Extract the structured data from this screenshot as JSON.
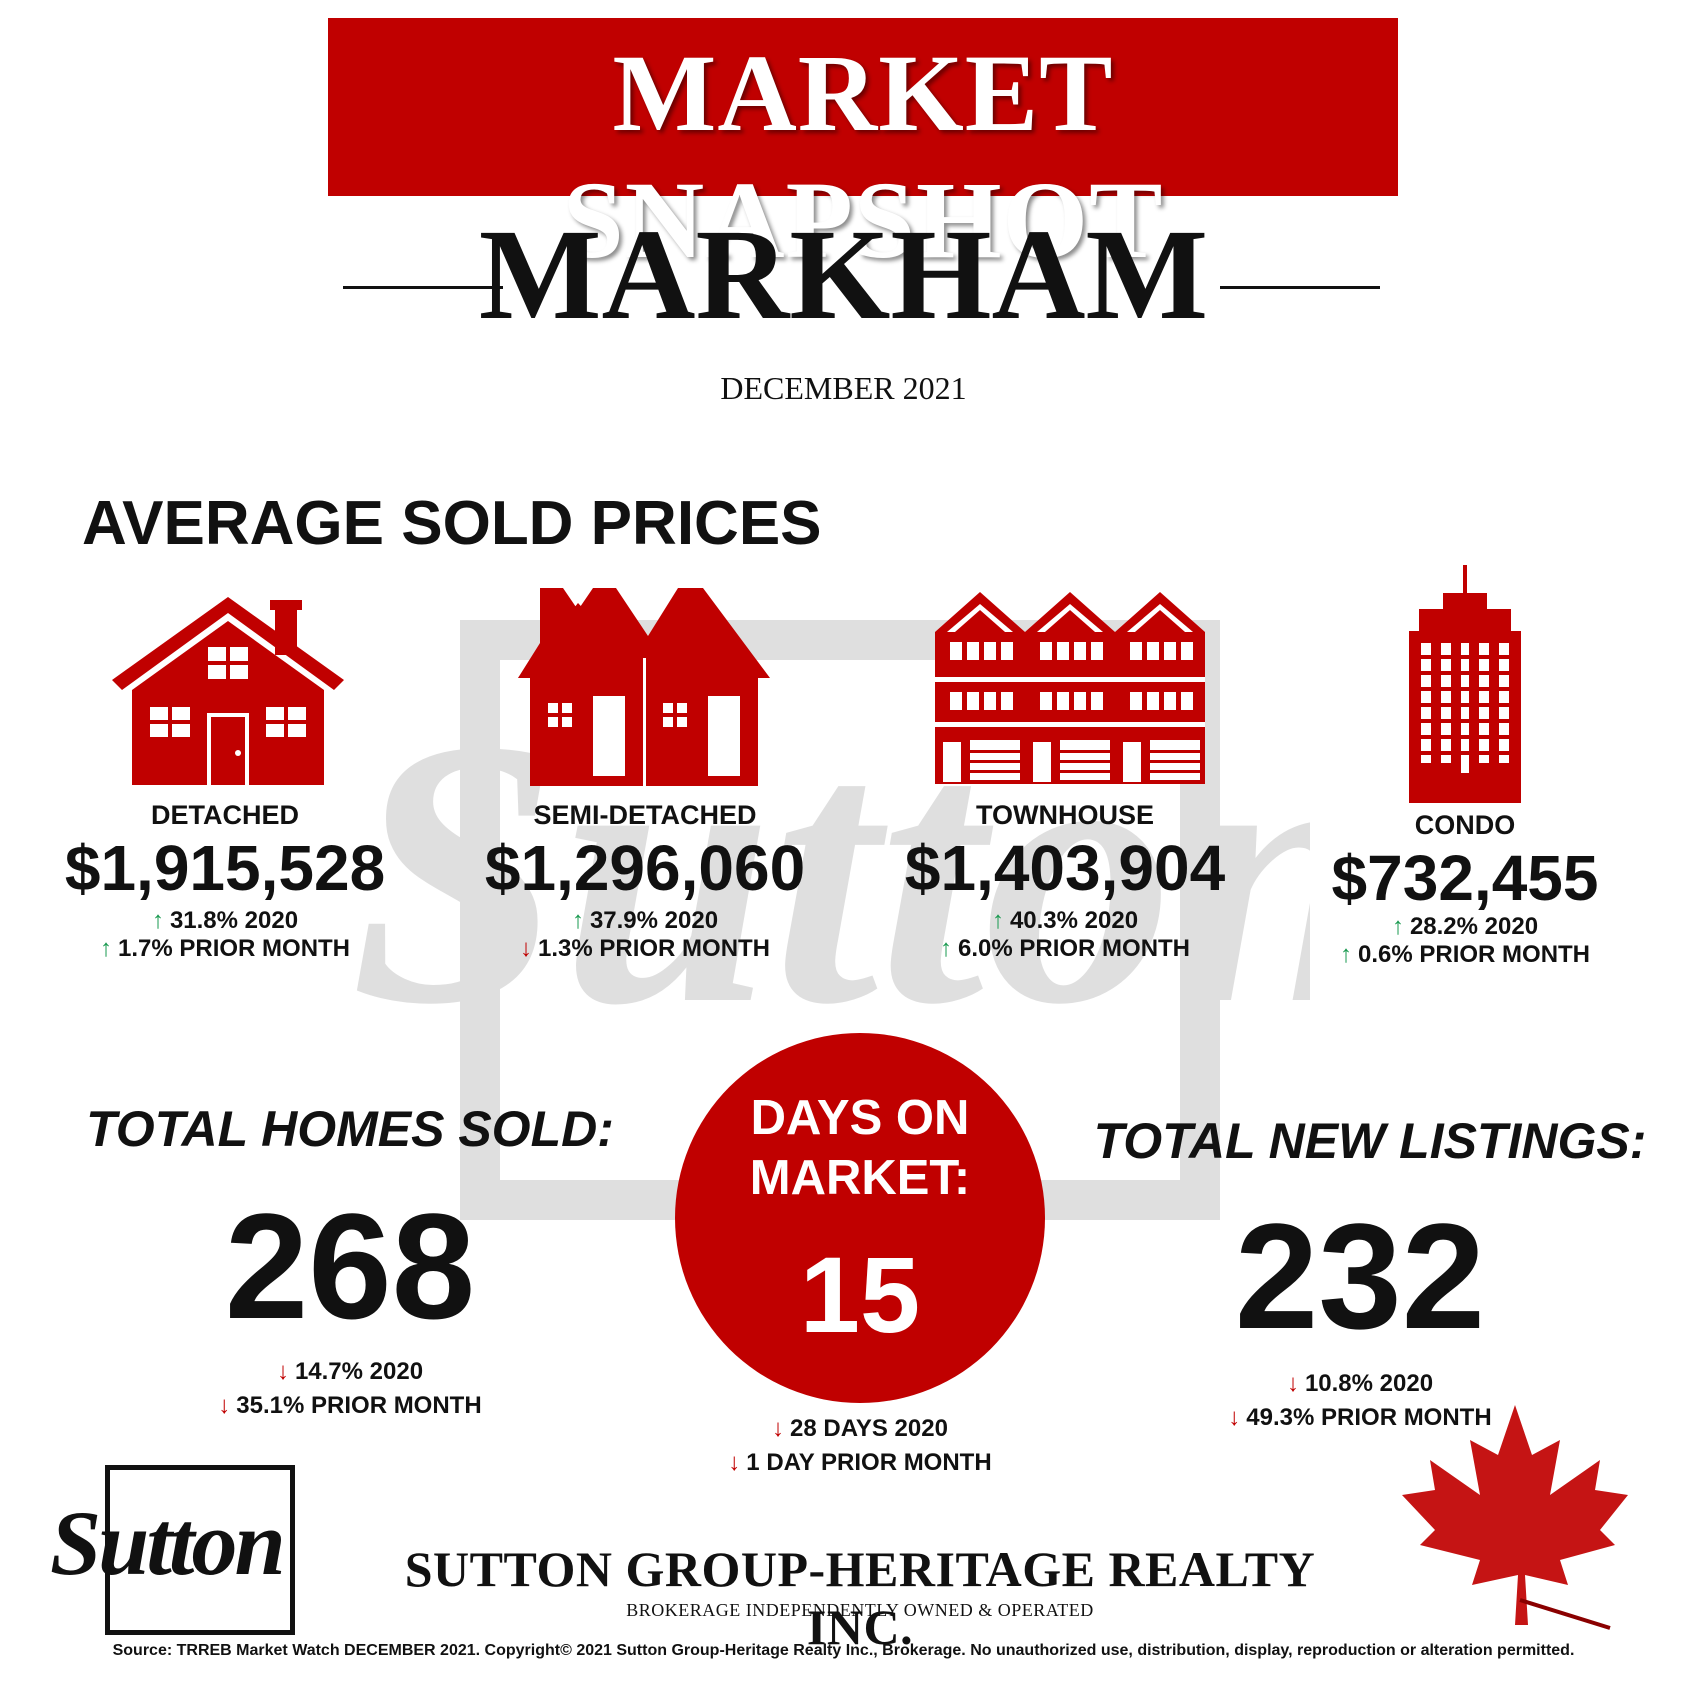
{
  "header": {
    "title": "MARKET SNAPSHOT",
    "city": "MARKHAM",
    "date": "DECEMBER 2021"
  },
  "section_title": "AVERAGE SOLD PRICES",
  "property_types": [
    {
      "name": "DETACHED",
      "price": "$1,915,528",
      "year_change": "31.8% 2020",
      "year_dir": "up",
      "month_change": "1.7% PRIOR MONTH",
      "month_dir": "up",
      "icon": "detached-house-icon"
    },
    {
      "name": "SEMI-DETACHED",
      "price": "$1,296,060",
      "year_change": "37.9% 2020",
      "year_dir": "up",
      "month_change": "1.3% PRIOR MONTH",
      "month_dir": "down",
      "icon": "semi-detached-house-icon"
    },
    {
      "name": "TOWNHOUSE",
      "price": "$1,403,904",
      "year_change": "40.3% 2020",
      "year_dir": "up",
      "month_change": "6.0% PRIOR MONTH",
      "month_dir": "up",
      "icon": "townhouse-icon"
    },
    {
      "name": "CONDO",
      "price": "$732,455",
      "year_change": "28.2% 2020",
      "year_dir": "up",
      "month_change": "0.6% PRIOR MONTH",
      "month_dir": "up",
      "icon": "condo-tower-icon"
    }
  ],
  "homes_sold": {
    "label": "TOTAL HOMES SOLD:",
    "value": "268",
    "year_change": "14.7% 2020",
    "month_change": "35.1% PRIOR MONTH"
  },
  "days_on_market": {
    "label_line1": "DAYS ON",
    "label_line2": "MARKET:",
    "value": "15",
    "year_change": "28 DAYS 2020",
    "month_change": "1 DAY PRIOR MONTH"
  },
  "new_listings": {
    "label": "TOTAL NEW LISTINGS:",
    "value": "232",
    "year_change": "10.8% 2020",
    "month_change": "49.3% PRIOR MONTH"
  },
  "brokerage": {
    "logo_text": "Sutton",
    "name": "SUTTON GROUP-HERITAGE REALTY INC.",
    "subtitle": "BROKERAGE INDEPENDENTLY OWNED & OPERATED"
  },
  "footer": {
    "source": "Source: TRREB Market Watch DECEMBER 2021. Copyright© 2021 Sutton Group-Heritage Realty Inc., Brokerage. No unauthorized use, distribution, display, reproduction or alteration permitted."
  },
  "colors": {
    "brand_red": "#c00000",
    "up_green": "#1a9a50",
    "down_red": "#d01010"
  },
  "arrows": {
    "up": "↑",
    "down": "↓"
  }
}
